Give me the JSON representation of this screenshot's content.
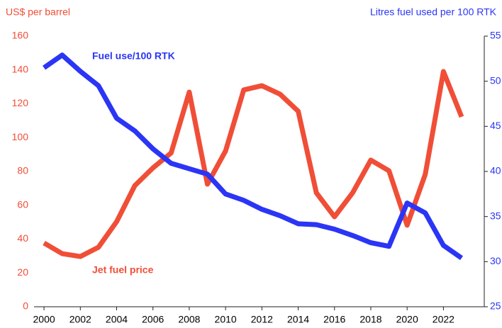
{
  "chart_data": {
    "type": "line",
    "y_label": "US$ per barrel",
    "y2_label": "Litres fuel used per 100 RTK",
    "annotations": [
      "Fuel use/100 RTK",
      "Jet fuel price"
    ],
    "x": [
      2000,
      2001,
      2002,
      2003,
      2004,
      2005,
      2006,
      2007,
      2008,
      2009,
      2010,
      2011,
      2012,
      2013,
      2014,
      2015,
      2016,
      2017,
      2018,
      2019,
      2020,
      2021,
      2022,
      2023
    ],
    "xlim": [
      1999.45,
      2024.25
    ],
    "xticks": [
      2000,
      2002,
      2004,
      2006,
      2008,
      2010,
      2012,
      2014,
      2016,
      2018,
      2020,
      2022
    ],
    "ylim": [
      0,
      160
    ],
    "yticks": [
      0,
      20,
      40,
      60,
      80,
      100,
      120,
      140,
      160
    ],
    "y2lim": [
      25,
      55
    ],
    "y2ticks": [
      25,
      30,
      35,
      40,
      45,
      50,
      55
    ],
    "series": [
      {
        "name": "Jet fuel price",
        "color": "#f04e37",
        "axis": "y",
        "values": [
          37.7,
          31.4,
          29.7,
          35.2,
          50.3,
          71.6,
          82.1,
          90.9,
          126.9,
          72.5,
          92.1,
          128.2,
          130.7,
          125.7,
          115.6,
          67.4,
          53.2,
          67.4,
          86.7,
          80.4,
          48.2,
          78.3,
          139.1,
          112.3
        ]
      },
      {
        "name": "Fuel use/100 RTK",
        "color": "#2b35f5",
        "axis": "y2",
        "values": [
          51.5,
          52.9,
          51.1,
          49.5,
          45.9,
          44.5,
          42.5,
          40.9,
          40.3,
          39.7,
          37.5,
          36.8,
          35.8,
          35.1,
          34.2,
          34.1,
          33.6,
          32.9,
          32.1,
          31.7,
          36.5,
          35.4,
          31.8,
          30.4
        ]
      }
    ]
  }
}
